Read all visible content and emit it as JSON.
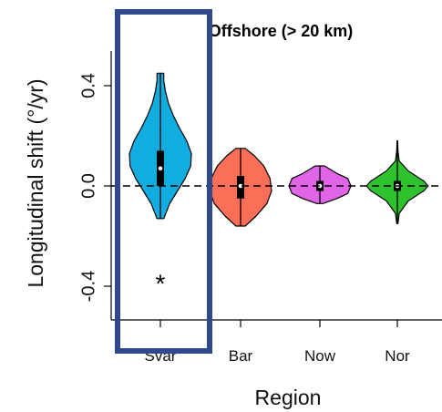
{
  "chart_data": {
    "type": "violin",
    "title": "Offshore (> 20 km)",
    "xlabel": "Region",
    "ylabel": "Longitudinal shift (°/yr)",
    "ylim": [
      -0.53,
      0.53
    ],
    "yticks": [
      "0.4",
      "0.0",
      "-0.4"
    ],
    "reference_line": 0.0,
    "categories": [
      "Svar",
      "Bar",
      "Now",
      "Nor"
    ],
    "series": [
      {
        "category": "Svar",
        "color": "#12ade0",
        "min": -0.13,
        "q1": 0.0,
        "median": 0.07,
        "q3": 0.14,
        "max": 0.45,
        "density": [
          [
            -0.13,
            0.11
          ],
          [
            -0.07,
            0.3
          ],
          [
            -0.02,
            0.55
          ],
          [
            0.03,
            0.8
          ],
          [
            0.08,
            0.98
          ],
          [
            0.13,
            1.0
          ],
          [
            0.18,
            0.85
          ],
          [
            0.23,
            0.62
          ],
          [
            0.28,
            0.42
          ],
          [
            0.33,
            0.26
          ],
          [
            0.38,
            0.16
          ],
          [
            0.42,
            0.11
          ],
          [
            0.45,
            0.11
          ]
        ],
        "annotation": "*",
        "annotation_value": -0.38
      },
      {
        "category": "Bar",
        "color": "#fb6e57",
        "min": -0.16,
        "q1": -0.05,
        "median": 0.0,
        "q3": 0.04,
        "max": 0.15,
        "density": [
          [
            -0.16,
            0.15
          ],
          [
            -0.12,
            0.5
          ],
          [
            -0.07,
            0.85
          ],
          [
            -0.02,
            1.0
          ],
          [
            0.03,
            0.95
          ],
          [
            0.08,
            0.75
          ],
          [
            0.12,
            0.45
          ],
          [
            0.15,
            0.15
          ]
        ]
      },
      {
        "category": "Now",
        "color": "#df65e6",
        "min": -0.07,
        "q1": -0.02,
        "median": 0.0,
        "q3": 0.02,
        "max": 0.08,
        "density": [
          [
            -0.07,
            0.1
          ],
          [
            -0.05,
            0.55
          ],
          [
            -0.03,
            0.9
          ],
          [
            0.0,
            1.0
          ],
          [
            0.03,
            0.9
          ],
          [
            0.05,
            0.55
          ],
          [
            0.08,
            0.15
          ]
        ]
      },
      {
        "category": "Nor",
        "color": "#2fc22f",
        "min": -0.15,
        "q1": -0.02,
        "median": 0.0,
        "q3": 0.02,
        "max": 0.18,
        "density": [
          [
            -0.15,
            0.02
          ],
          [
            -0.11,
            0.06
          ],
          [
            -0.06,
            0.35
          ],
          [
            -0.02,
            0.85
          ],
          [
            0.0,
            1.0
          ],
          [
            0.02,
            0.85
          ],
          [
            0.06,
            0.35
          ],
          [
            0.1,
            0.06
          ],
          [
            0.14,
            0.02
          ],
          [
            0.18,
            0.01
          ]
        ]
      }
    ],
    "highlight": {
      "category": "Svar",
      "color": "#2e4a8a"
    },
    "grid": false,
    "legend": "none"
  }
}
